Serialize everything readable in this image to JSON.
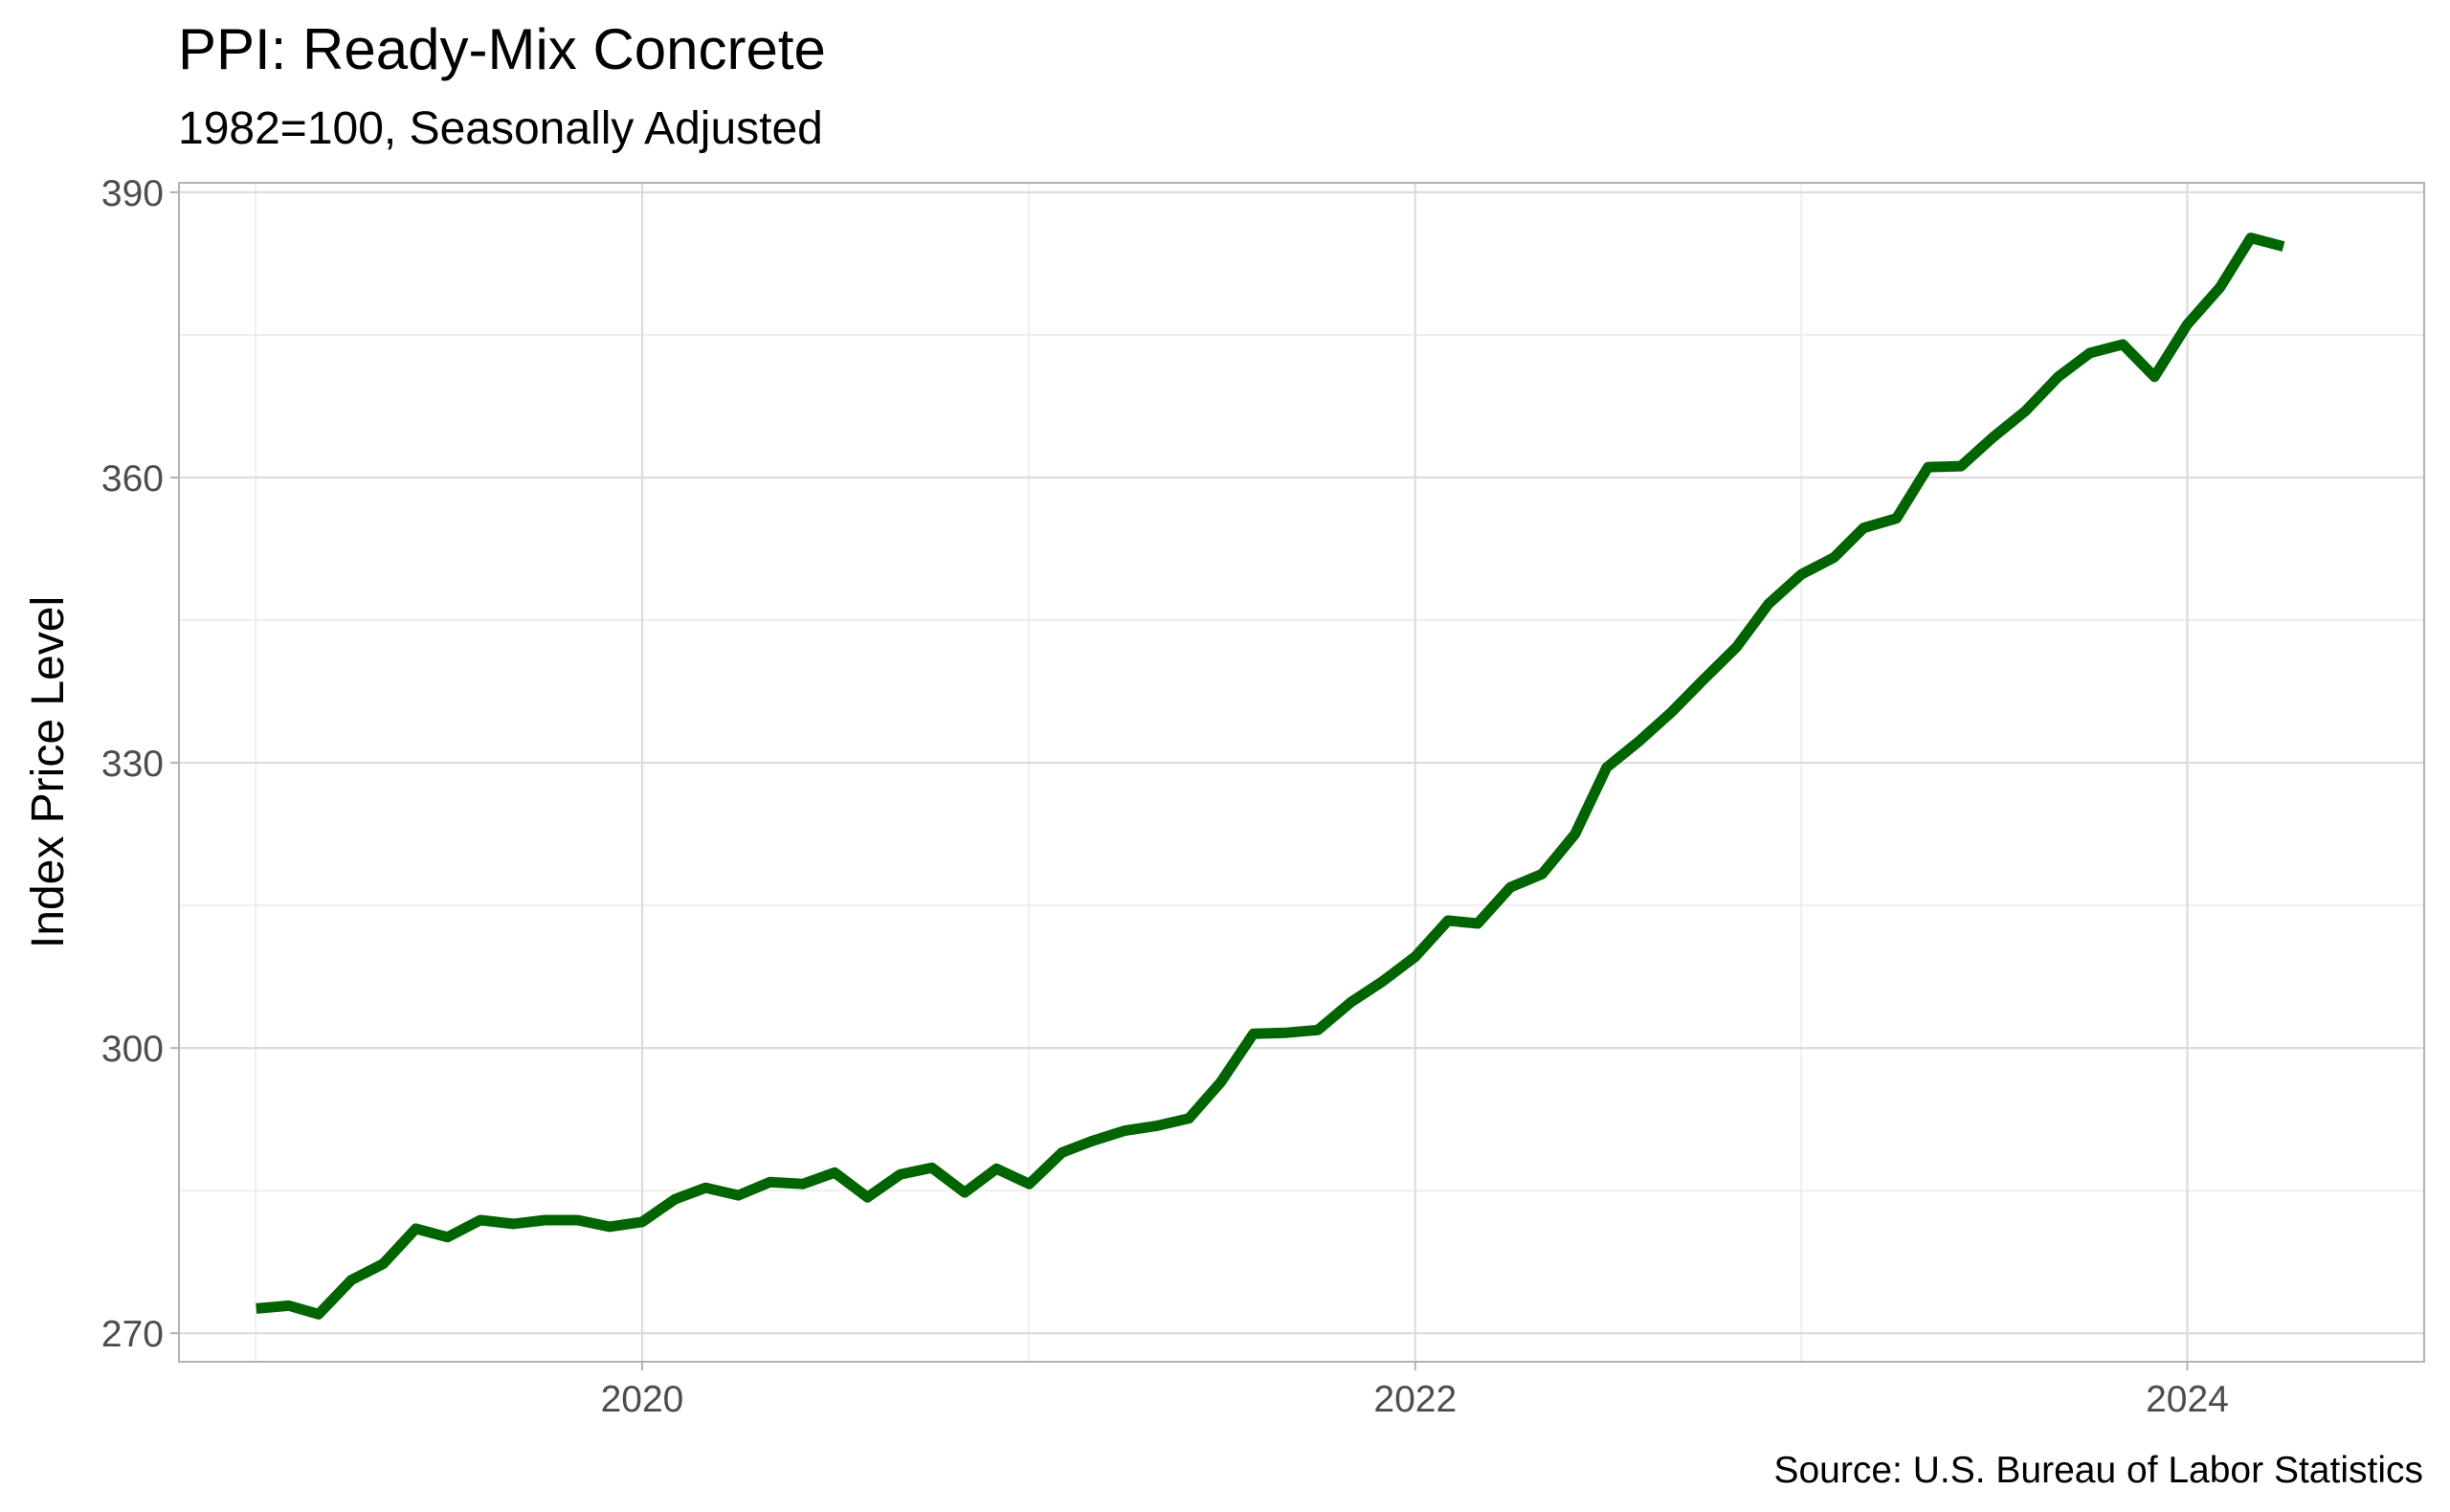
{
  "chart_data": {
    "type": "line",
    "title": "PPI: Ready-Mix Concrete",
    "subtitle": "1982=100, Seasonally Adjusted",
    "xlabel": "",
    "ylabel": "Index Price Level",
    "caption": "Source: U.S. Bureau of Labor Statistics",
    "xlim": [
      "2018-10-20",
      "2024-08-12"
    ],
    "ylim": [
      267,
      391
    ],
    "x_ticks": [
      "2020-01-01",
      "2022-01-01",
      "2024-01-01"
    ],
    "x_tick_labels": [
      "2020",
      "2022",
      "2024"
    ],
    "y_ticks": [
      270,
      300,
      330,
      360,
      390
    ],
    "y_tick_labels": [
      "270",
      "300",
      "330",
      "360",
      "390"
    ],
    "grid": true,
    "colors": {
      "line": "#006400"
    },
    "series": [
      {
        "x": [
          "2019-01-01",
          "2019-02-01",
          "2019-03-01",
          "2019-04-01",
          "2019-05-01",
          "2019-06-01",
          "2019-07-01",
          "2019-08-01",
          "2019-09-01",
          "2019-10-01",
          "2019-11-01",
          "2019-12-01",
          "2020-01-01",
          "2020-02-01",
          "2020-03-01",
          "2020-04-01",
          "2020-05-01",
          "2020-06-01",
          "2020-07-01",
          "2020-08-01",
          "2020-09-01",
          "2020-10-01",
          "2020-11-01",
          "2020-12-01",
          "2021-01-01",
          "2021-02-01",
          "2021-03-01",
          "2021-04-01",
          "2021-05-01",
          "2021-06-01",
          "2021-07-01",
          "2021-08-01",
          "2021-09-01",
          "2021-10-01",
          "2021-11-01",
          "2021-12-01",
          "2022-01-01",
          "2022-02-01",
          "2022-03-01",
          "2022-04-01",
          "2022-05-01",
          "2022-06-01",
          "2022-07-01",
          "2022-08-01",
          "2022-09-01",
          "2022-10-01",
          "2022-11-01",
          "2022-12-01",
          "2023-01-01",
          "2023-02-01",
          "2023-03-01",
          "2023-04-01",
          "2023-05-01",
          "2023-06-01",
          "2023-07-01",
          "2023-08-01",
          "2023-09-01",
          "2023-10-01",
          "2023-11-01",
          "2023-12-01",
          "2024-01-01",
          "2024-02-01",
          "2024-03-01",
          "2024-04-01"
        ],
        "values": [
          272.6,
          272.9,
          272.0,
          275.6,
          277.3,
          281.0,
          280.1,
          281.9,
          281.5,
          281.9,
          281.9,
          281.2,
          281.7,
          284.1,
          285.3,
          284.5,
          285.9,
          285.7,
          286.9,
          284.3,
          286.7,
          287.4,
          284.8,
          287.3,
          285.7,
          289.0,
          290.2,
          291.3,
          291.8,
          292.6,
          296.4,
          301.5,
          301.6,
          301.9,
          304.8,
          307.0,
          309.6,
          313.4,
          313.1,
          316.9,
          318.3,
          322.5,
          329.5,
          332.3,
          335.4,
          338.8,
          342.2,
          346.7,
          349.8,
          351.6,
          354.7,
          355.7,
          361.1,
          361.2,
          364.2,
          367.0,
          370.6,
          373.1,
          374.0,
          370.6,
          376.1,
          380.0,
          385.2,
          384.3
        ]
      }
    ]
  }
}
